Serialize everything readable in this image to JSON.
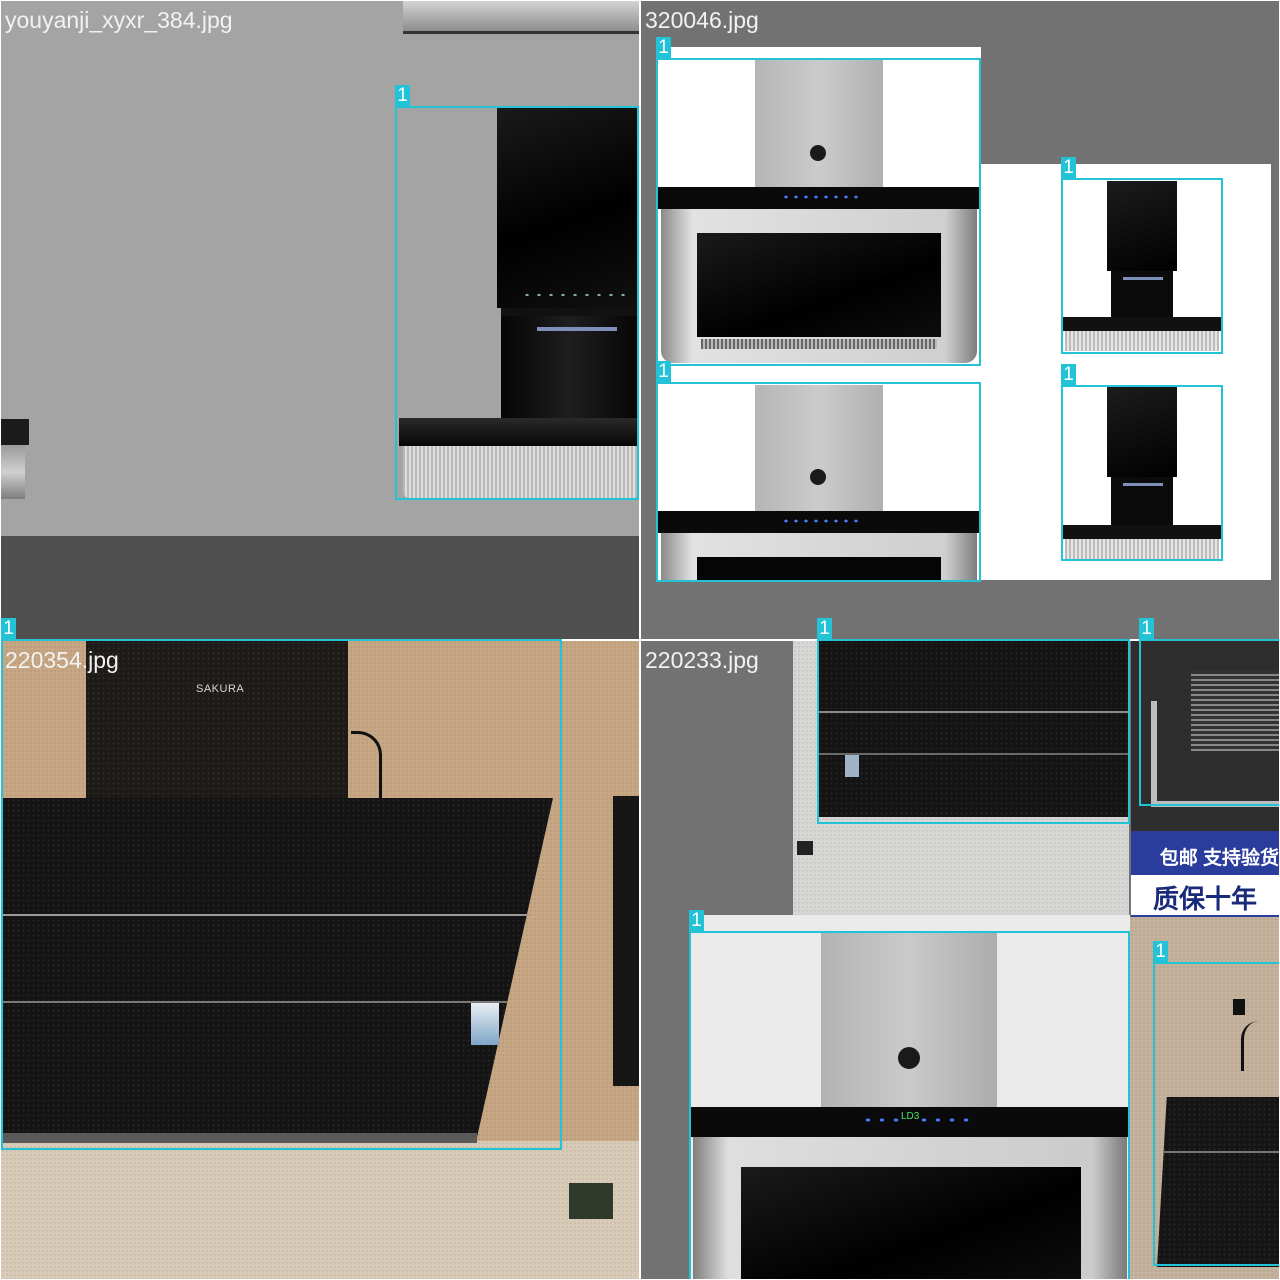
{
  "tiles": [
    {
      "filename": "youyanji_xyxr_384.jpg",
      "boxes": [
        {
          "label": "1"
        }
      ]
    },
    {
      "filename": "320046.jpg",
      "boxes": [
        {
          "label": "1"
        },
        {
          "label": "1"
        },
        {
          "label": "1"
        },
        {
          "label": "1"
        }
      ]
    },
    {
      "filename": "220354.jpg",
      "boxes": [
        {
          "label": "1"
        }
      ],
      "brand_text": "SAKURA"
    },
    {
      "filename": "220233.jpg",
      "boxes": [
        {
          "label": "1"
        },
        {
          "label": "1"
        },
        {
          "label": "1"
        },
        {
          "label": "1"
        }
      ],
      "banner_line1": "包邮 支持验货",
      "banner_line2": "质保十年",
      "display_text": "LD3"
    }
  ],
  "colors": {
    "box_stroke": "#22c3d6",
    "pad_gray": "#727272"
  }
}
